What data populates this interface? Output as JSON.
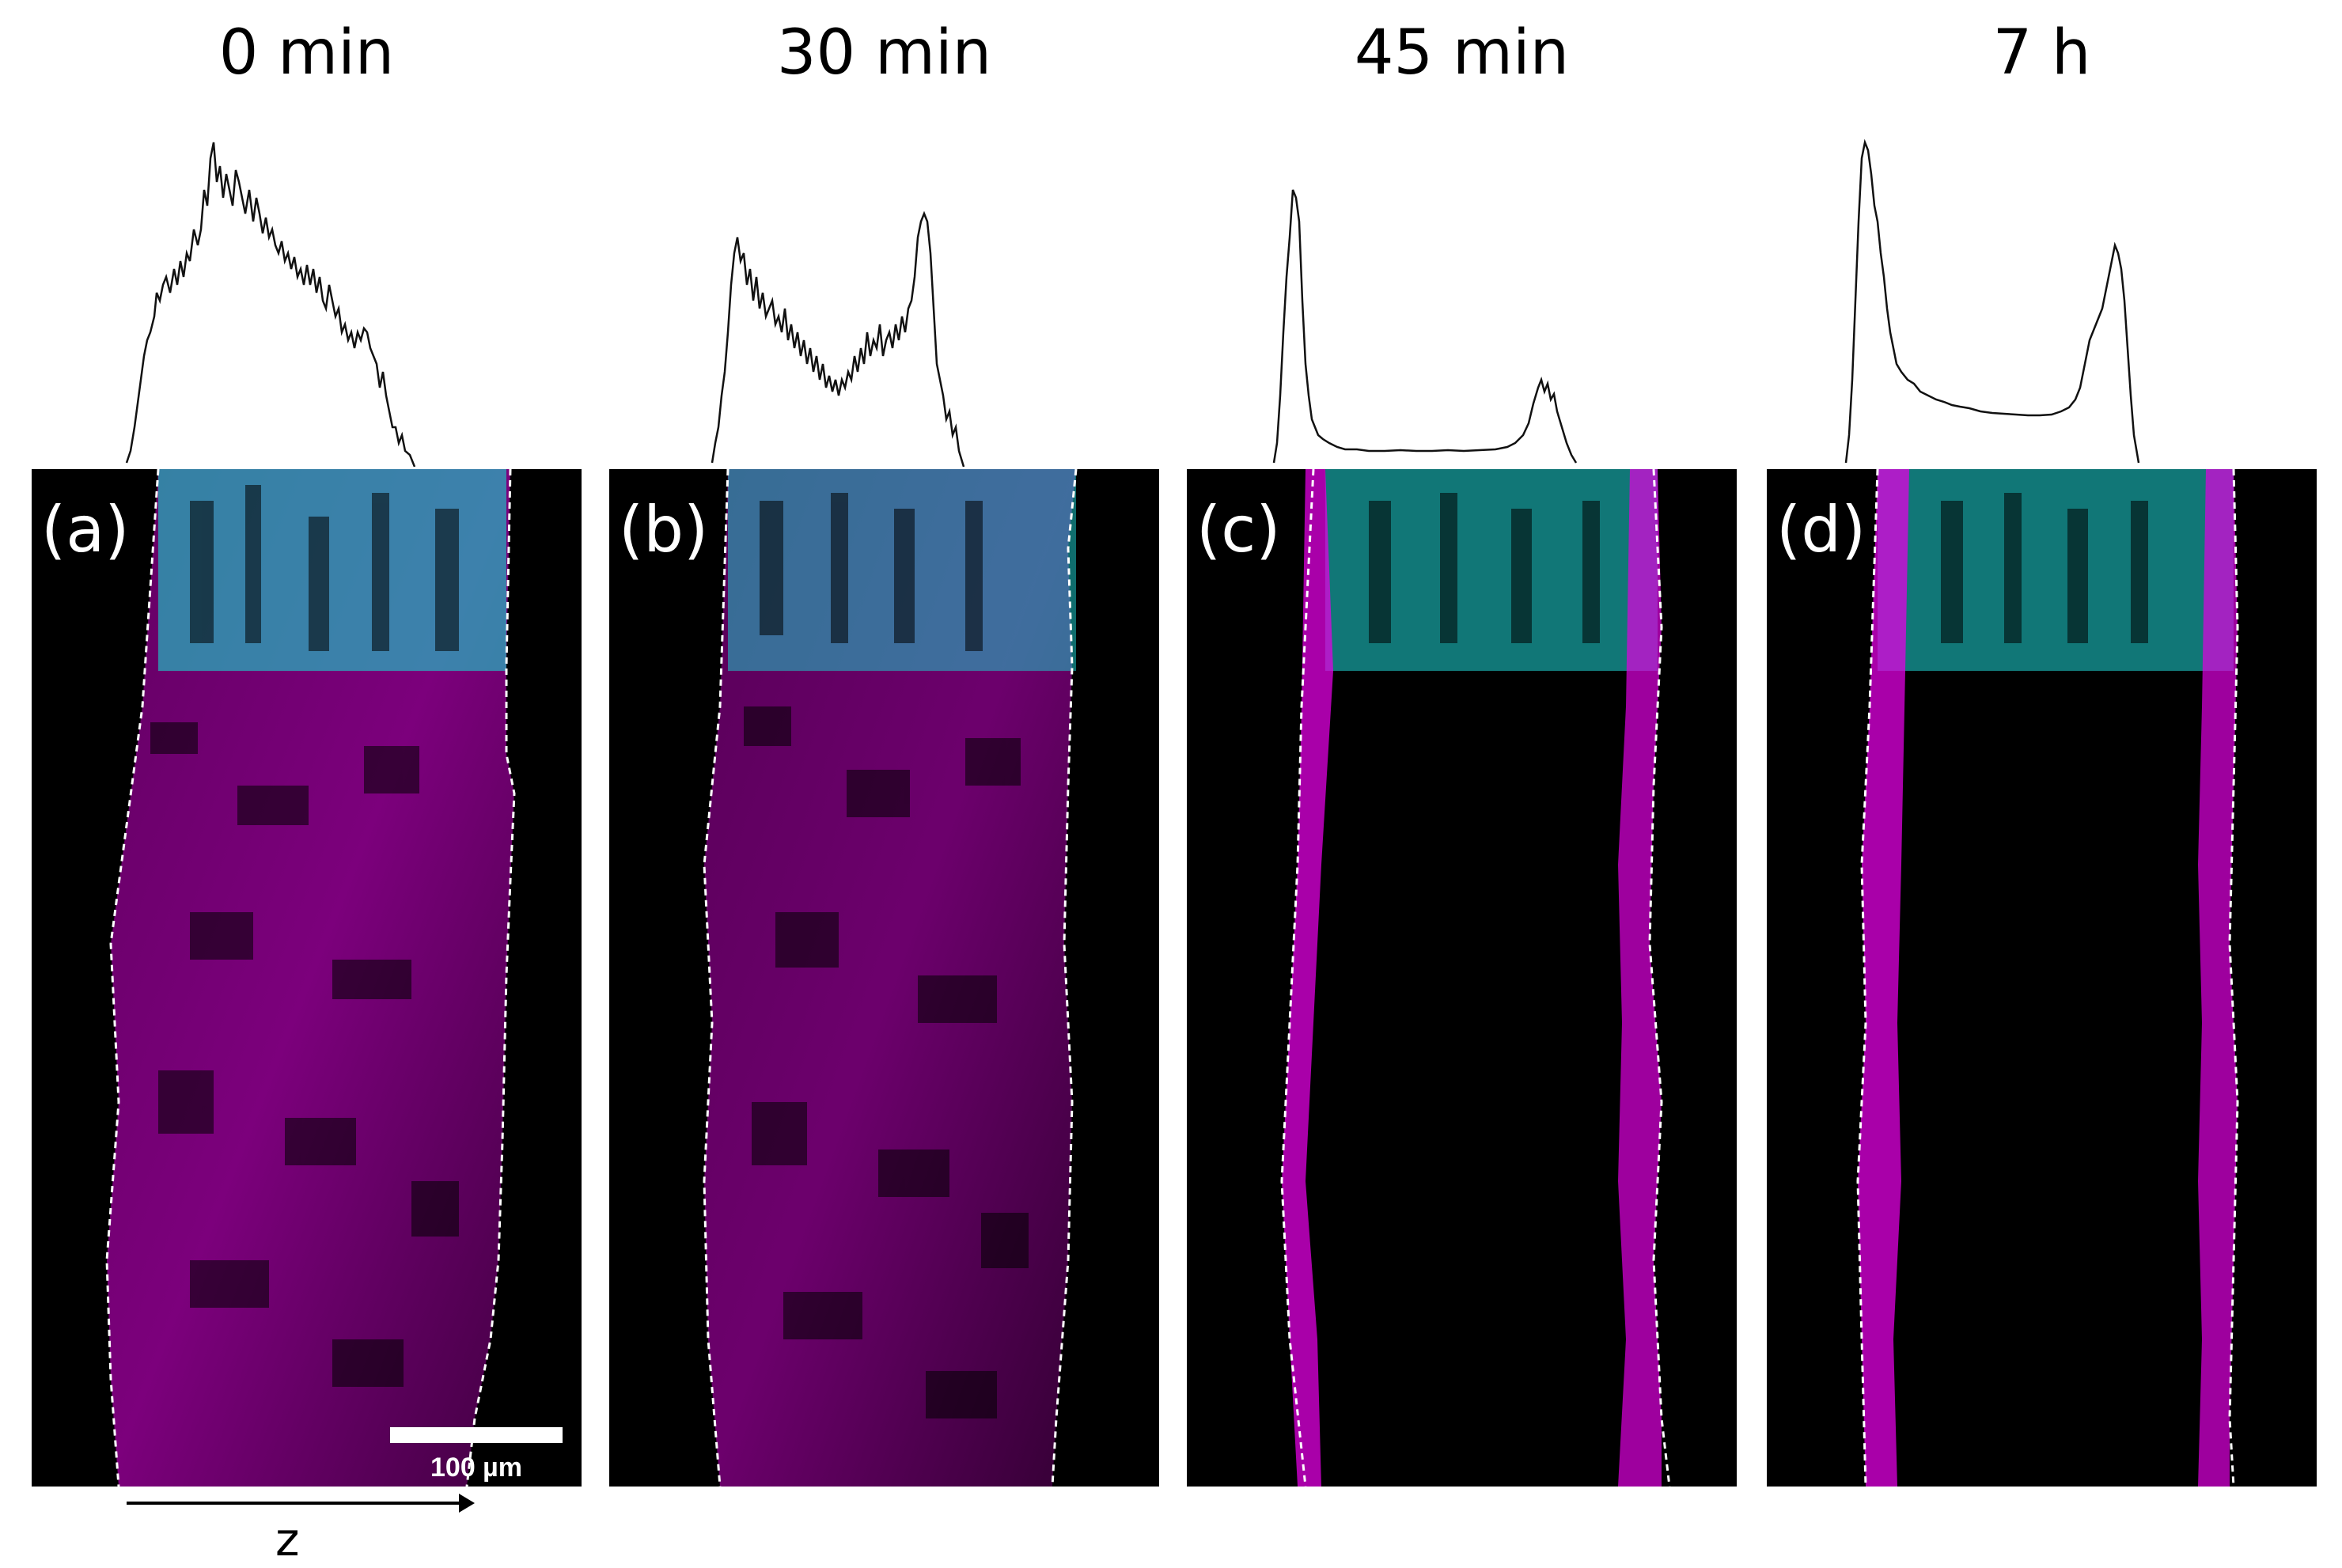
{
  "panels": [
    {
      "title": "0 min",
      "label": "(a)"
    },
    {
      "title": "30 min",
      "label": "(b)"
    },
    {
      "title": "45 min",
      "label": "(c)"
    },
    {
      "title": "7 h",
      "label": "(d)"
    }
  ],
  "scale_bar": {
    "label": "100 µm"
  },
  "axis": {
    "label": "z"
  },
  "colors": {
    "magenta": "#e100e1",
    "cyan": "#1cc6c6",
    "profile_line": "#111111",
    "boundary": "#ffffff",
    "background": "#000000"
  }
}
